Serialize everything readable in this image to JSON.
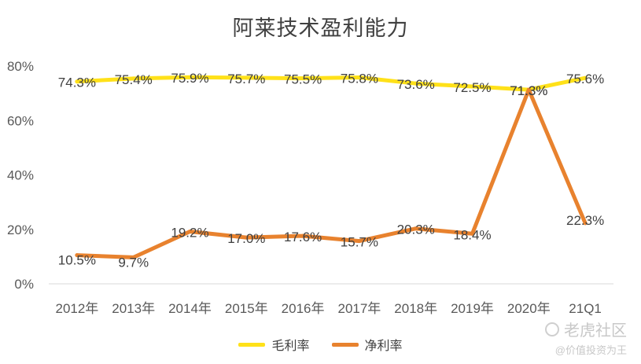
{
  "chart_data": {
    "type": "line",
    "title": "阿莱技术盈利能力",
    "categories": [
      "2012年",
      "2013年",
      "2014年",
      "2015年",
      "2016年",
      "2017年",
      "2018年",
      "2019年",
      "2020年",
      "21Q1"
    ],
    "ylim": [
      0,
      80
    ],
    "yticks": [
      "0%",
      "20%",
      "40%",
      "60%",
      "80%"
    ],
    "ytick_values": [
      0,
      20,
      40,
      60,
      80
    ],
    "grid": false,
    "legend_position": "bottom",
    "series": [
      {
        "name": "毛利率",
        "color": "#FFE119",
        "values": [
          74.3,
          75.4,
          75.9,
          75.7,
          75.5,
          75.8,
          73.6,
          72.5,
          71.3,
          75.6
        ],
        "labels": [
          "74.3%",
          "75.4%",
          "75.9%",
          "75.7%",
          "75.5%",
          "75.8%",
          "73.6%",
          "72.5%",
          "71.3%",
          "75.6%"
        ]
      },
      {
        "name": "净利率",
        "color": "#E8822E",
        "values": [
          10.5,
          9.7,
          19.2,
          17.0,
          17.6,
          15.7,
          20.3,
          18.4,
          71.3,
          22.3
        ],
        "labels": [
          "10.5%",
          "9.7%",
          "19.2%",
          "17.0%",
          "17.6%",
          "15.7%",
          "20.3%",
          "18.4%",
          "71.3%",
          "22.3%"
        ]
      }
    ]
  },
  "watermark": {
    "brand": "老虎社区",
    "handle": "@价值投资为王"
  }
}
